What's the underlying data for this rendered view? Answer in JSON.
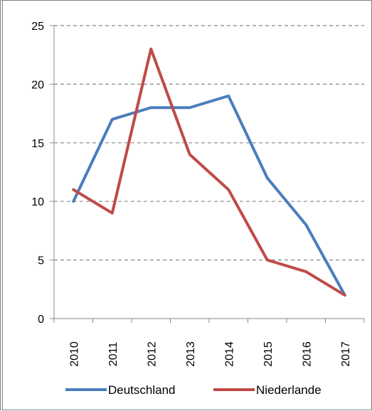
{
  "chart_data": {
    "type": "line",
    "x": [
      "2010",
      "2011",
      "2012",
      "2013",
      "2014",
      "2015",
      "2016",
      "2017"
    ],
    "series": [
      {
        "name": "Deutschland",
        "values": [
          10,
          17,
          18,
          18,
          19,
          12,
          8,
          2
        ],
        "color": "#4a7ebb"
      },
      {
        "name": "Niederlande",
        "values": [
          11,
          9,
          23,
          14,
          11,
          5,
          4,
          2
        ],
        "color": "#be4b48"
      }
    ],
    "title": "",
    "xlabel": "",
    "ylabel": "",
    "ylim": [
      0,
      25
    ],
    "yticks": [
      "0",
      "5",
      "10",
      "15",
      "20",
      "25"
    ],
    "grid": "horizontal dashed",
    "legend": "bottom"
  }
}
